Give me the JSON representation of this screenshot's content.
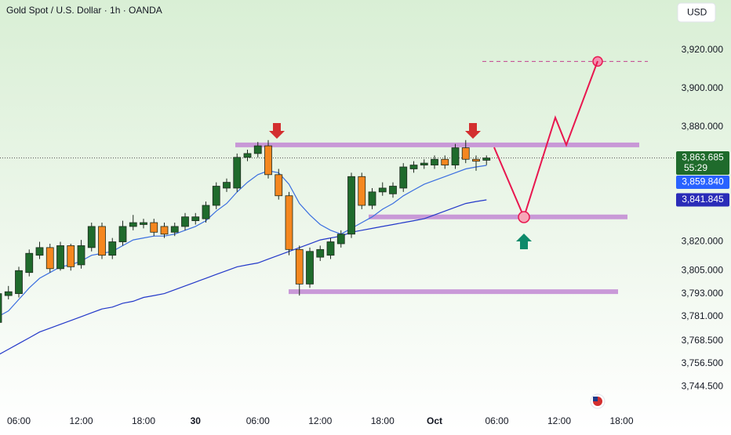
{
  "chart_data": {
    "type": "candlestick",
    "title": "Gold Spot / U.S. Dollar · 1h · OANDA",
    "currency_button": "USD",
    "categories": [
      null,
      null,
      "06:00",
      null,
      null,
      null,
      null,
      null,
      "12:00",
      null,
      null,
      null,
      null,
      null,
      "18:00",
      null,
      null,
      null,
      null,
      "30",
      null,
      null,
      null,
      null,
      null,
      "06:00",
      null,
      null,
      null,
      null,
      null,
      "12:00",
      null,
      null,
      null,
      null,
      null,
      "18:00",
      null,
      null,
      null,
      null,
      "Oct",
      null,
      null,
      null,
      null,
      null,
      "06:00",
      null,
      null,
      null,
      null,
      null,
      "12:00",
      null,
      null,
      null,
      null,
      null,
      "18:00",
      null,
      null,
      null
    ],
    "open": [
      3778,
      3792,
      3793,
      3804,
      3813,
      3817,
      3806,
      3818,
      3808,
      3817,
      3828,
      3813,
      3820,
      3828,
      3829,
      3830,
      3828,
      3825,
      3828,
      3831,
      3832,
      3839,
      3848,
      3848,
      3864,
      3866,
      3870,
      3855,
      3844,
      3816,
      3798,
      3812,
      3813,
      3819,
      3824,
      3854,
      3839,
      3846,
      3845,
      3848,
      3858,
      3860,
      3860,
      3863,
      3860,
      3869,
      3863,
      3862.5,
      null,
      null,
      null,
      null,
      null,
      null,
      null,
      null,
      null,
      null,
      null,
      null,
      null,
      null,
      null,
      null
    ],
    "high": [
      3795,
      3797,
      3807,
      3816,
      3820,
      3819,
      3820,
      3819,
      3821,
      3830,
      3830,
      3822,
      3831,
      3834,
      3832,
      3832,
      3830,
      3830,
      3835,
      3835,
      3841,
      3851,
      3853,
      3866,
      3868,
      3872,
      3873,
      3858,
      3846,
      3818,
      3817,
      3818,
      3822,
      3826,
      3856,
      3856,
      3848,
      3851,
      3851,
      3861,
      3862,
      3863,
      3865,
      3865,
      3871,
      3873,
      3865,
      3865,
      null,
      null,
      null,
      null,
      null,
      null,
      null,
      null,
      null,
      null,
      null,
      null,
      null,
      null,
      null,
      null
    ],
    "low": [
      3776,
      3790,
      3791,
      3802,
      3811,
      3804,
      3805,
      3805,
      3806,
      3815,
      3811,
      3811,
      3818,
      3826,
      3827,
      3823,
      3822,
      3823,
      3826,
      3829,
      3830,
      3837,
      3846,
      3846,
      3862,
      3864,
      3853,
      3842,
      3813,
      3792,
      3796,
      3810,
      3811,
      3817,
      3822,
      3837,
      3837,
      3844,
      3843,
      3846,
      3856,
      3858,
      3858,
      3858,
      3858,
      3861,
      3857,
      3860,
      null,
      null,
      null,
      null,
      null,
      null,
      null,
      null,
      null,
      null,
      null,
      null,
      null,
      null,
      null,
      null
    ],
    "close": [
      3793,
      3794,
      3805,
      3814,
      3817,
      3806,
      3818,
      3807,
      3818,
      3828,
      3813,
      3820,
      3828,
      3830,
      3830,
      3825,
      3824,
      3828,
      3833,
      3833,
      3839,
      3849,
      3851,
      3864,
      3866,
      3870,
      3855,
      3844,
      3816,
      3798,
      3815,
      3816,
      3820,
      3824,
      3854,
      3839,
      3846,
      3848,
      3849,
      3859,
      3860,
      3861,
      3863,
      3860,
      3869,
      3863,
      3862,
      3863.685,
      null,
      null,
      null,
      null,
      null,
      null,
      null,
      null,
      null,
      null,
      null,
      null,
      null,
      null,
      null,
      null
    ],
    "up_color": "#1f6b2c",
    "down_color": "#f5871f",
    "series": [
      {
        "color": "#3b6fe0",
        "values": [
          3781,
          3784,
          3790,
          3796,
          3801,
          3804,
          3807,
          3808,
          3810,
          3813,
          3814,
          3815,
          3818,
          3821,
          3822,
          3823,
          3823,
          3824,
          3826,
          3828,
          3831,
          3836,
          3840,
          3846,
          3851,
          3855,
          3857,
          3856,
          3850,
          3840,
          3834,
          3829,
          3826,
          3824,
          3827,
          3830,
          3833,
          3837,
          3840,
          3844,
          3847,
          3850,
          3852,
          3854,
          3856,
          3858,
          3859,
          3859.84,
          null,
          null,
          null,
          null,
          null,
          null,
          null,
          null,
          null,
          null,
          null,
          null,
          null,
          null,
          null,
          null
        ]
      },
      {
        "color": "#2338c9",
        "values": [
          3761,
          3764,
          3767,
          3770,
          3773,
          3775,
          3777,
          3779,
          3781,
          3783,
          3785,
          3786,
          3788,
          3789,
          3791,
          3792,
          3793,
          3795,
          3797,
          3799,
          3801,
          3803,
          3805,
          3807,
          3808,
          3809,
          3811,
          3813,
          3815,
          3817,
          3819,
          3821,
          3822,
          3823,
          3825,
          3826,
          3827,
          3828,
          3829,
          3830,
          3831,
          3832,
          3834,
          3836,
          3838,
          3840,
          3841,
          3841.845,
          null,
          null,
          null,
          null,
          null,
          null,
          null,
          null,
          null,
          null,
          null,
          null,
          null,
          null,
          null,
          null
        ]
      }
    ],
    "levels": [
      3870.5,
      3833,
      3794
    ],
    "level_color": "#c58fd6",
    "target": 3914,
    "ylim": [
      3732,
      3946
    ],
    "yticks": [
      {
        "value": 3920,
        "label": "3,920.000"
      },
      {
        "value": 3900,
        "label": "3,900.000"
      },
      {
        "value": 3880,
        "label": "3,880.000"
      },
      {
        "value": 3820,
        "label": "3,820.000"
      },
      {
        "value": 3805,
        "label": "3,805.000"
      },
      {
        "value": 3793,
        "label": "3,793.000"
      },
      {
        "value": 3781,
        "label": "3,781.000"
      },
      {
        "value": 3768.5,
        "label": "3,768.500"
      },
      {
        "value": 3756.5,
        "label": "3,756.500"
      },
      {
        "value": 3744.5,
        "label": "3,744.500"
      }
    ],
    "price_tags": [
      {
        "value": 3863.685,
        "label": "3,863.685",
        "countdown": "55:29",
        "color": "#1f6b2c"
      },
      {
        "value": 3859.84,
        "label": "3,859.840",
        "color": "#2962ff"
      },
      {
        "value": 3841.845,
        "label": "3,841.845",
        "color": "#2a2cb8"
      }
    ]
  }
}
